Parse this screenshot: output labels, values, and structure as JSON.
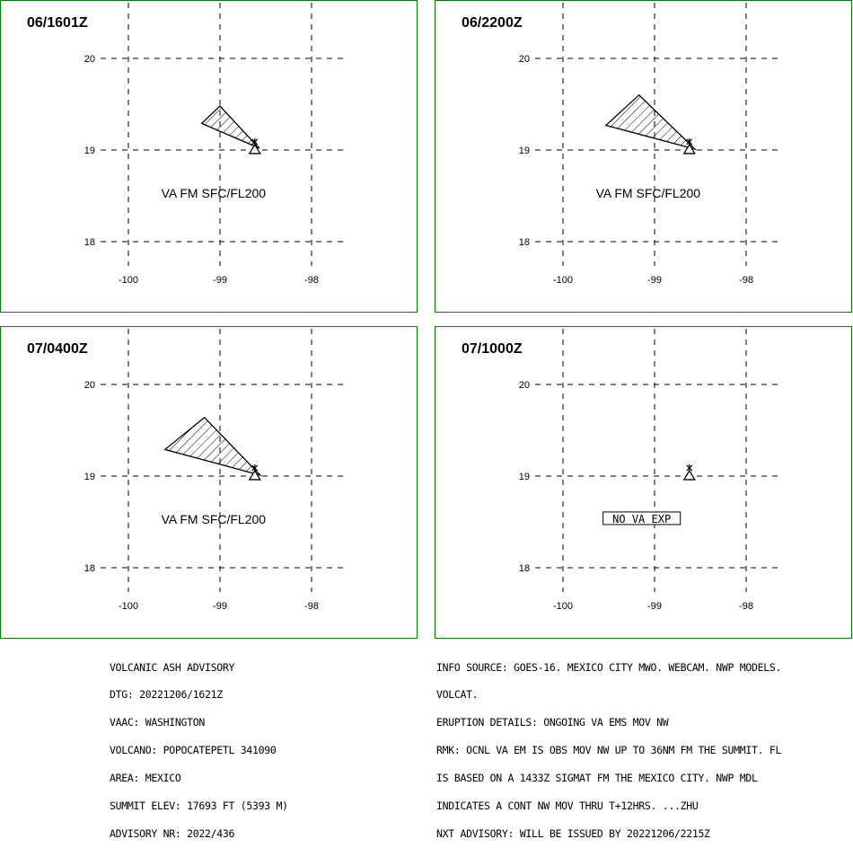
{
  "panels": [
    {
      "time": "06/1601Z",
      "label": "VA FM SFC/FL200",
      "no_ash": false,
      "polygon": [
        [
          -99.0,
          19.48
        ],
        [
          -99.2,
          19.29
        ],
        [
          -98.57,
          19.02
        ],
        [
          -98.62,
          19.07
        ]
      ]
    },
    {
      "time": "06/2200Z",
      "label": "VA FM SFC/FL200",
      "no_ash": false,
      "polygon": [
        [
          -99.17,
          19.6
        ],
        [
          -99.53,
          19.27
        ],
        [
          -98.56,
          19.01
        ],
        [
          -98.6,
          19.05
        ]
      ]
    },
    {
      "time": "07/0400Z",
      "label": "VA FM SFC/FL200",
      "no_ash": false,
      "polygon": [
        [
          -99.17,
          19.64
        ],
        [
          -99.6,
          19.29
        ],
        [
          -98.56,
          19.01
        ],
        [
          -98.6,
          19.05
        ]
      ]
    },
    {
      "time": "07/1000Z",
      "label": "NO VA EXP",
      "no_ash": true,
      "polygon": []
    }
  ],
  "map": {
    "lon_ticks": [
      "-100",
      "-99",
      "-98"
    ],
    "lat_ticks": [
      "20",
      "19",
      "18"
    ],
    "lon_values": [
      -100,
      -99,
      -98
    ],
    "lat_values": [
      20,
      19,
      18
    ],
    "volcano": {
      "lon": -98.62,
      "lat": 19.02
    },
    "border_color": "#008000"
  },
  "advisory_left": [
    "VOLCANIC ASH ADVISORY",
    "DTG: 20221206/1621Z",
    "VAAC: WASHINGTON",
    "VOLCANO: POPOCATEPETL 341090",
    "AREA: MEXICO",
    "SUMMIT ELEV: 17693 FT (5393 M)",
    "ADVISORY NR: 2022/436"
  ],
  "advisory_right": [
    "INFO SOURCE: GOES-16. MEXICO CITY MWO. WEBCAM. NWP MODELS.",
    "VOLCAT.",
    "ERUPTION DETAILS: ONGOING VA EMS MOV NW",
    "RMK: OCNL VA EM IS OBS MOV NW UP TO 36NM FM THE SUMMIT. FL",
    "IS BASED ON A 1433Z SIGMAT FM THE MEXICO CITY. NWP MDL",
    "INDICATES A CONT NW MOV THRU T+12HRS. ...ZHU",
    "NXT ADVISORY: WILL BE ISSUED BY 20221206/2215Z"
  ]
}
